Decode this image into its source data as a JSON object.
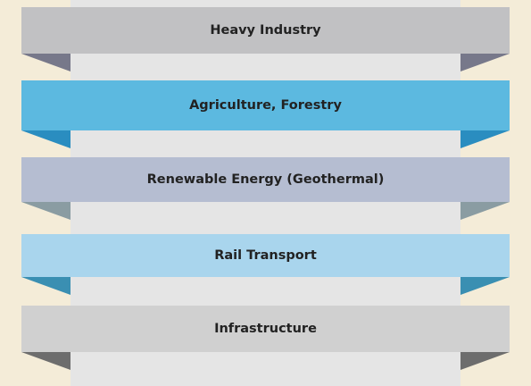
{
  "items": [
    {
      "label": "Heavy Industry"
    },
    {
      "label": "Agriculture, Forestry"
    },
    {
      "label": "Renewable Energy (Geothermal)"
    },
    {
      "label": "Rail Transport"
    },
    {
      "label": "Infrastructure"
    }
  ]
}
